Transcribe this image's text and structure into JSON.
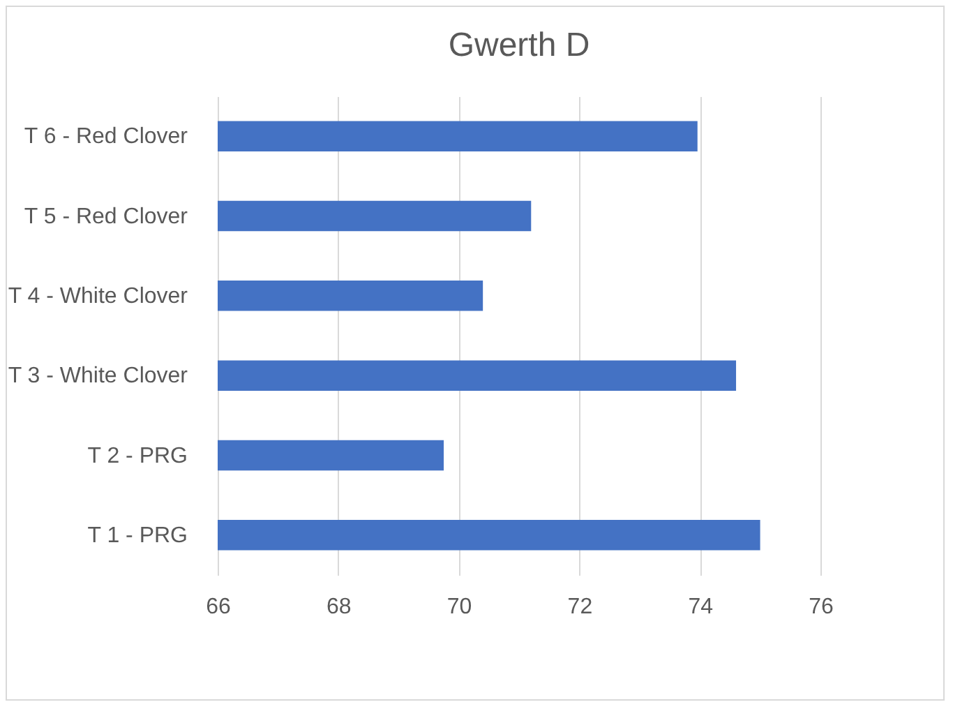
{
  "chart_data": {
    "type": "bar",
    "orientation": "horizontal",
    "title": "Gwerth D",
    "categories": [
      "T 6 - Red Clover",
      "T 5 - Red Clover",
      "T 4 - White Clover",
      "T 3 - White Clover",
      "T 2 - PRG",
      "T 1 - PRG"
    ],
    "values": [
      73.96,
      71.2,
      70.4,
      74.6,
      69.75,
      75.0
    ],
    "color": "#4472c4",
    "xlim": [
      66,
      76
    ],
    "xticks": [
      66,
      68,
      70,
      72,
      74,
      76
    ],
    "grid": "x"
  }
}
